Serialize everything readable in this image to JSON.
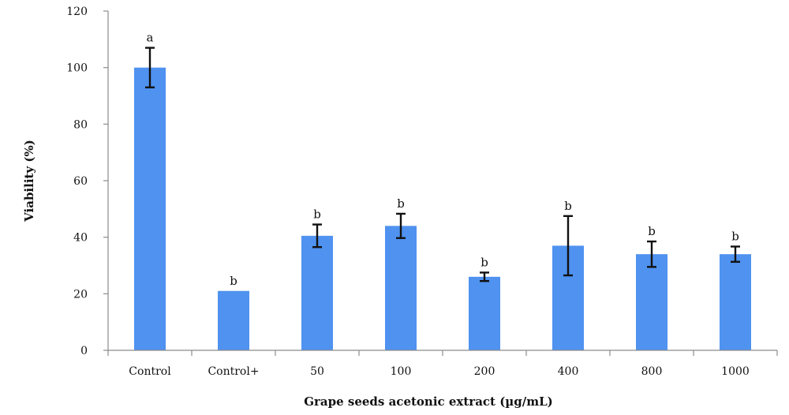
{
  "chart_data": {
    "type": "bar",
    "xlabel": "Grape seeds acetonic extract (µg/mL)",
    "ylabel": "Viability (%)",
    "ylim": [
      0,
      120
    ],
    "yticks": [
      0,
      20,
      40,
      60,
      80,
      100,
      120
    ],
    "grid": false,
    "categories": [
      "Control",
      "Control+",
      "50",
      "100",
      "200",
      "400",
      "800",
      "1000"
    ],
    "values": [
      100,
      21,
      40.5,
      44,
      26,
      37,
      34,
      34
    ],
    "error": [
      7,
      0,
      4,
      4.3,
      1.5,
      10.5,
      4.5,
      2.7
    ],
    "significance": [
      "a",
      "b",
      "b",
      "b",
      "b",
      "b",
      "b",
      "b"
    ],
    "colors": {
      "bar": "#4f92f0",
      "axis": "#8c8c8c",
      "error_bar": "#111111"
    }
  }
}
